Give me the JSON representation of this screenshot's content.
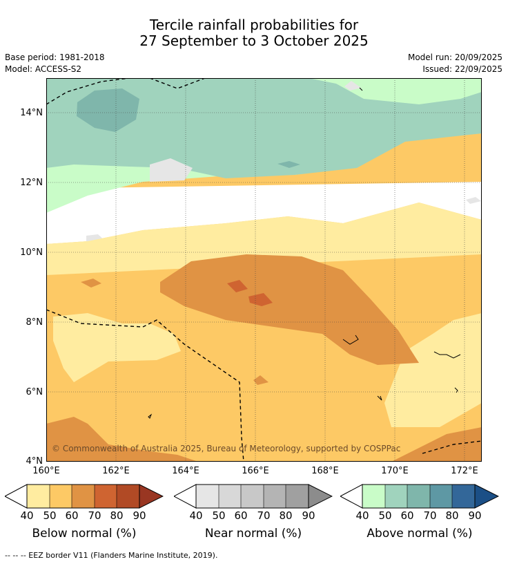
{
  "header": {
    "title_line1": "Tercile rainfall probabilities for",
    "title_line2": "27 September to 3 October 2025",
    "base_period": "Base period: 1981-2018",
    "model": "Model: ACCESS-S2",
    "model_run": "Model run: 20/09/2025",
    "issued": "Issued: 22/09/2025"
  },
  "map": {
    "copyright": "© Commonwealth of Australia 2025, Bureau of Meteorology, supported by COSPPac",
    "lat_ticks": [
      "14°N",
      "12°N",
      "10°N",
      "8°N",
      "6°N",
      "4°N"
    ],
    "lon_ticks": [
      "160°E",
      "162°E",
      "164°E",
      "166°E",
      "168°E",
      "170°E",
      "172°E"
    ]
  },
  "legends": [
    {
      "label": "Below normal (%)",
      "ticks": [
        "40",
        "50",
        "60",
        "70",
        "80",
        "90"
      ],
      "low_color": "#ffffff",
      "colors": [
        "#ffeca0",
        "#fdc965",
        "#e09344",
        "#cf6431",
        "#b14a25"
      ],
      "high_color": "#993622"
    },
    {
      "label": "Near normal (%)",
      "ticks": [
        "40",
        "50",
        "60",
        "70",
        "80",
        "90"
      ],
      "low_color": "#ffffff",
      "colors": [
        "#e6e6e6",
        "#d8d8d8",
        "#c8c8c8",
        "#b4b4b4",
        "#a0a0a0"
      ],
      "high_color": "#8c8c8c"
    },
    {
      "label": "Above normal (%)",
      "ticks": [
        "40",
        "50",
        "60",
        "70",
        "80",
        "90"
      ],
      "low_color": "#ffffff",
      "colors": [
        "#c9fcc8",
        "#a0d3bd",
        "#7fb6ab",
        "#5e98a4",
        "#336799"
      ],
      "high_color": "#1b4f86"
    }
  ],
  "footer": {
    "eez_note": "--  --  -- EEZ border V11 (Flanders Marine Institute, 2019)."
  }
}
